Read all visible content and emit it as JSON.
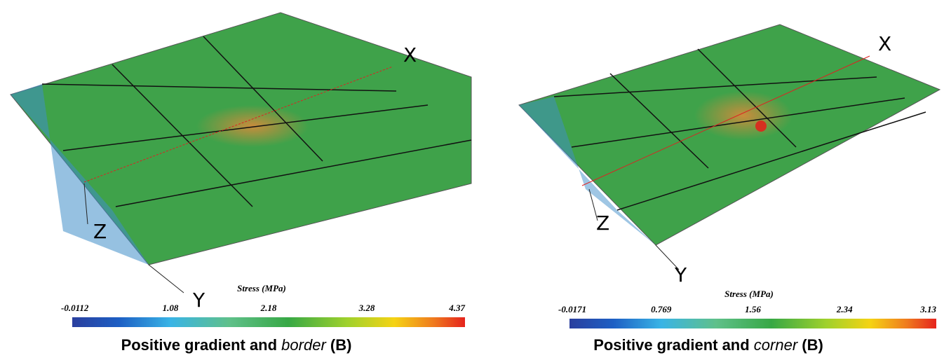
{
  "panels": [
    {
      "axes": {
        "x": "X",
        "y": "Y",
        "z": "Z"
      },
      "colorbar": {
        "title": "Stress (MPa)",
        "ticks": [
          "-0.0112",
          "1.08",
          "2.18",
          "3.28",
          "4.37"
        ]
      },
      "caption": {
        "pre": "Positive gradient and ",
        "em": "border",
        "post": " (B)"
      }
    },
    {
      "axes": {
        "x": "X",
        "y": "Y",
        "z": "Z"
      },
      "colorbar": {
        "title": "Stress (MPa)",
        "ticks": [
          "-0.0171",
          "0.769",
          "1.56",
          "2.34",
          "3.13"
        ]
      },
      "caption": {
        "pre": "Positive gradient and ",
        "em": "corner",
        "post": " (B)"
      }
    }
  ]
}
